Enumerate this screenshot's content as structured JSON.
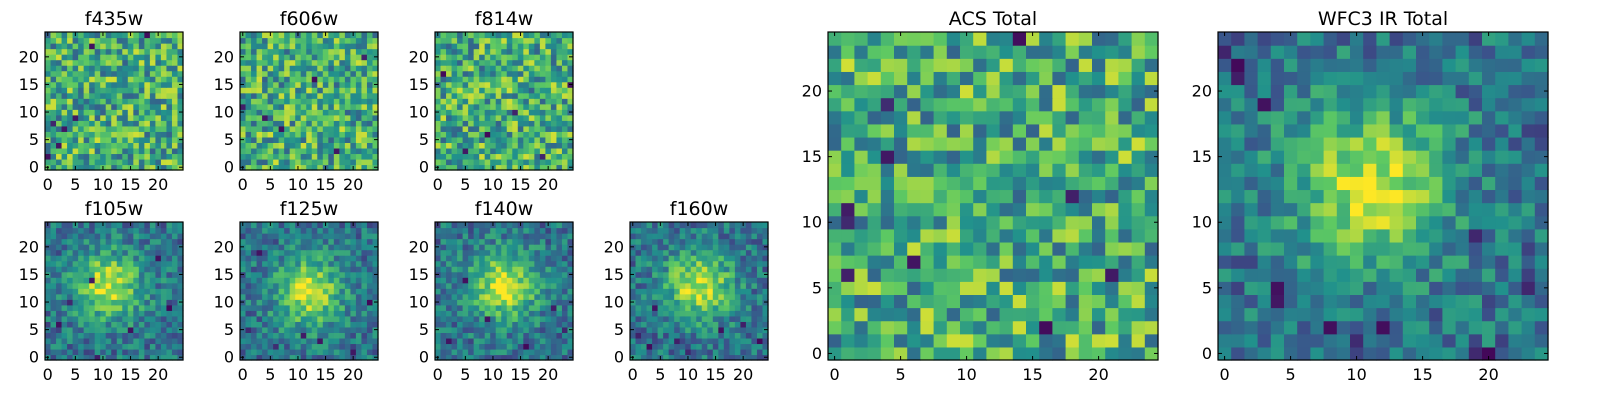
{
  "figure": {
    "colormap": [
      "#440154",
      "#3b528b",
      "#21918c",
      "#5ec962",
      "#fde725"
    ],
    "background": "#ffffff"
  },
  "chart_data": [
    {
      "type": "heatmap",
      "title": "f435w",
      "size": 25,
      "xticks": [
        0,
        5,
        10,
        15,
        20
      ],
      "yticks": [
        0,
        5,
        10,
        15,
        20
      ],
      "xlim": [
        -0.5,
        24.5
      ],
      "ylim": [
        -0.5,
        24.5
      ],
      "pattern": "noise",
      "peak": [
        12,
        13
      ],
      "dark_pixels": [
        [
          0,
          2
        ],
        [
          1,
          8
        ],
        [
          2,
          4
        ],
        [
          3,
          7
        ],
        [
          5,
          9
        ],
        [
          8,
          22
        ],
        [
          18,
          24
        ]
      ]
    },
    {
      "type": "heatmap",
      "title": "f606w",
      "size": 25,
      "xticks": [
        0,
        5,
        10,
        15,
        20
      ],
      "yticks": [
        0,
        5,
        10,
        15,
        20
      ],
      "xlim": [
        -0.5,
        24.5
      ],
      "ylim": [
        -0.5,
        24.5
      ],
      "pattern": "noise",
      "peak": [
        12,
        13
      ],
      "dark_pixels": [
        [
          0,
          11
        ],
        [
          4,
          9
        ],
        [
          7,
          7
        ],
        [
          13,
          16
        ],
        [
          17,
          3
        ],
        [
          22,
          20
        ]
      ]
    },
    {
      "type": "heatmap",
      "title": "f814w",
      "size": 25,
      "xticks": [
        0,
        5,
        10,
        15,
        20
      ],
      "yticks": [
        0,
        5,
        10,
        15,
        20
      ],
      "xlim": [
        -0.5,
        24.5
      ],
      "ylim": [
        -0.5,
        24.5
      ],
      "pattern": "noise",
      "peak": [
        12,
        13
      ],
      "dark_pixels": [
        [
          1,
          17
        ],
        [
          5,
          3
        ],
        [
          9,
          6
        ],
        [
          14,
          10
        ],
        [
          19,
          2
        ],
        [
          24,
          15
        ]
      ]
    },
    {
      "type": "heatmap",
      "title": "f105w",
      "size": 25,
      "xticks": [
        0,
        5,
        10,
        15,
        20
      ],
      "yticks": [
        0,
        5,
        10,
        15,
        20
      ],
      "xlim": [
        -0.5,
        24.5
      ],
      "ylim": [
        -0.5,
        24.5
      ],
      "pattern": "blob",
      "peak": [
        11,
        13
      ],
      "dark_pixels": [
        [
          2,
          6
        ],
        [
          4,
          10
        ],
        [
          8,
          14
        ],
        [
          9,
          0
        ],
        [
          15,
          5
        ],
        [
          20,
          18
        ],
        [
          22,
          9
        ]
      ]
    },
    {
      "type": "heatmap",
      "title": "f125w",
      "size": 25,
      "xticks": [
        0,
        5,
        10,
        15,
        20
      ],
      "yticks": [
        0,
        5,
        10,
        15,
        20
      ],
      "xlim": [
        -0.5,
        24.5
      ],
      "ylim": [
        -0.5,
        24.5
      ],
      "pattern": "blob",
      "peak": [
        12,
        12
      ],
      "dark_pixels": [
        [
          1,
          5
        ],
        [
          3,
          19
        ],
        [
          6,
          2
        ],
        [
          11,
          4
        ],
        [
          14,
          3
        ],
        [
          20,
          1
        ],
        [
          23,
          10
        ]
      ]
    },
    {
      "type": "heatmap",
      "title": "f140w",
      "size": 25,
      "xticks": [
        0,
        5,
        10,
        15,
        20
      ],
      "yticks": [
        0,
        5,
        10,
        15,
        20
      ],
      "xlim": [
        -0.5,
        24.5
      ],
      "ylim": [
        -0.5,
        24.5
      ],
      "pattern": "blob",
      "peak": [
        12,
        13
      ],
      "dark_pixels": [
        [
          2,
          3
        ],
        [
          5,
          14
        ],
        [
          9,
          7
        ],
        [
          16,
          2
        ],
        [
          21,
          9
        ],
        [
          23,
          5
        ]
      ]
    },
    {
      "type": "heatmap",
      "title": "f160w",
      "size": 25,
      "xticks": [
        0,
        5,
        10,
        15,
        20
      ],
      "yticks": [
        0,
        5,
        10,
        15,
        20
      ],
      "xlim": [
        -0.5,
        24.5
      ],
      "ylim": [
        -0.5,
        24.5
      ],
      "pattern": "blob",
      "peak": [
        12,
        13
      ],
      "dark_pixels": [
        [
          1,
          4
        ],
        [
          3,
          2
        ],
        [
          4,
          9
        ],
        [
          8,
          3
        ],
        [
          10,
          1
        ],
        [
          16,
          5
        ],
        [
          20,
          6
        ],
        [
          23,
          3
        ]
      ]
    },
    {
      "type": "heatmap",
      "title": "ACS Total",
      "size": 25,
      "xticks": [
        0,
        5,
        10,
        15,
        20
      ],
      "yticks": [
        0,
        5,
        10,
        15,
        20
      ],
      "xlim": [
        -0.5,
        24.5
      ],
      "ylim": [
        -0.5,
        24.5
      ],
      "pattern": "noise",
      "peak": [
        12,
        13
      ],
      "dark_pixels": [
        [
          1,
          10
        ],
        [
          1,
          11
        ],
        [
          1,
          6
        ],
        [
          4,
          15
        ],
        [
          6,
          7
        ],
        [
          16,
          2
        ],
        [
          21,
          6
        ],
        [
          4,
          19
        ],
        [
          18,
          12
        ],
        [
          14,
          24
        ]
      ]
    },
    {
      "type": "heatmap",
      "title": "WFC3 IR Total",
      "size": 25,
      "xticks": [
        0,
        5,
        10,
        15,
        20
      ],
      "yticks": [
        0,
        5,
        10,
        15,
        20
      ],
      "xlim": [
        -0.5,
        24.5
      ],
      "ylim": [
        -0.5,
        24.5
      ],
      "pattern": "blob",
      "peak": [
        11,
        13
      ],
      "dark_pixels": [
        [
          1,
          22
        ],
        [
          1,
          21
        ],
        [
          3,
          19
        ],
        [
          4,
          5
        ],
        [
          4,
          4
        ],
        [
          8,
          2
        ],
        [
          10,
          1
        ],
        [
          12,
          2
        ],
        [
          19,
          0
        ],
        [
          20,
          0
        ],
        [
          19,
          9
        ],
        [
          23,
          5
        ],
        [
          0,
          23
        ]
      ]
    }
  ]
}
